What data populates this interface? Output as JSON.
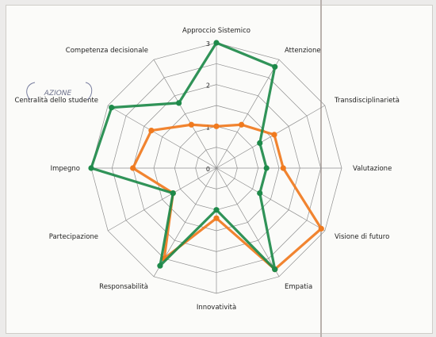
{
  "chart_data": {
    "type": "radar",
    "title": "",
    "axes": [
      "Approccio Sistemico",
      "Attenzione",
      "Transdisciplinarietà",
      "Valutazione",
      "Visione di futuro",
      "Empatia",
      "Innovatività",
      "Responsabilità",
      "Partecipazione",
      "Impegno",
      "Centralità dello studente",
      "Competenza decisionale"
    ],
    "rlim": [
      0,
      3
    ],
    "rticks": [
      "0",
      "1",
      "2",
      "3"
    ],
    "grid": true,
    "series": [
      {
        "color": "#1e8a4a",
        "values": [
          3,
          2.8,
          1.2,
          1.2,
          1.2,
          2.8,
          1.0,
          2.7,
          1.2,
          3.0,
          2.9,
          1.8
        ]
      },
      {
        "color": "#f07a1e",
        "values": [
          1.0,
          1.2,
          1.6,
          1.6,
          2.9,
          2.8,
          1.2,
          2.5,
          1.2,
          2.0,
          1.8,
          1.2
        ]
      }
    ]
  },
  "annotation": "AZIONE"
}
